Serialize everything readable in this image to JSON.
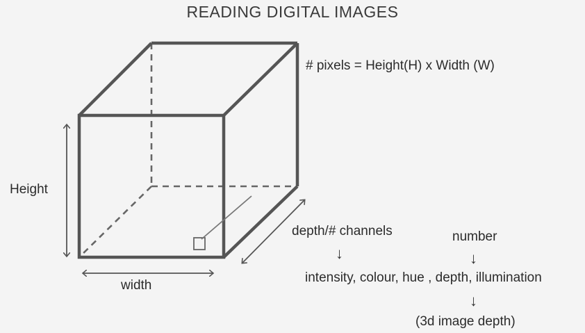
{
  "title": "READING DIGITAL IMAGES",
  "formula": "# pixels = Height(H) x Width (W)",
  "labels": {
    "height": "Height",
    "width": "width",
    "depth_channels": "depth/# channels",
    "number": "number",
    "properties": "intensity, colour, hue , depth, illumination",
    "image_depth_3d": "(3d image depth)"
  },
  "icons": {
    "down_arrow": "↓"
  },
  "colors": {
    "background": "#f4f4f4",
    "stroke": "#555555",
    "text": "#2b2b2b"
  }
}
